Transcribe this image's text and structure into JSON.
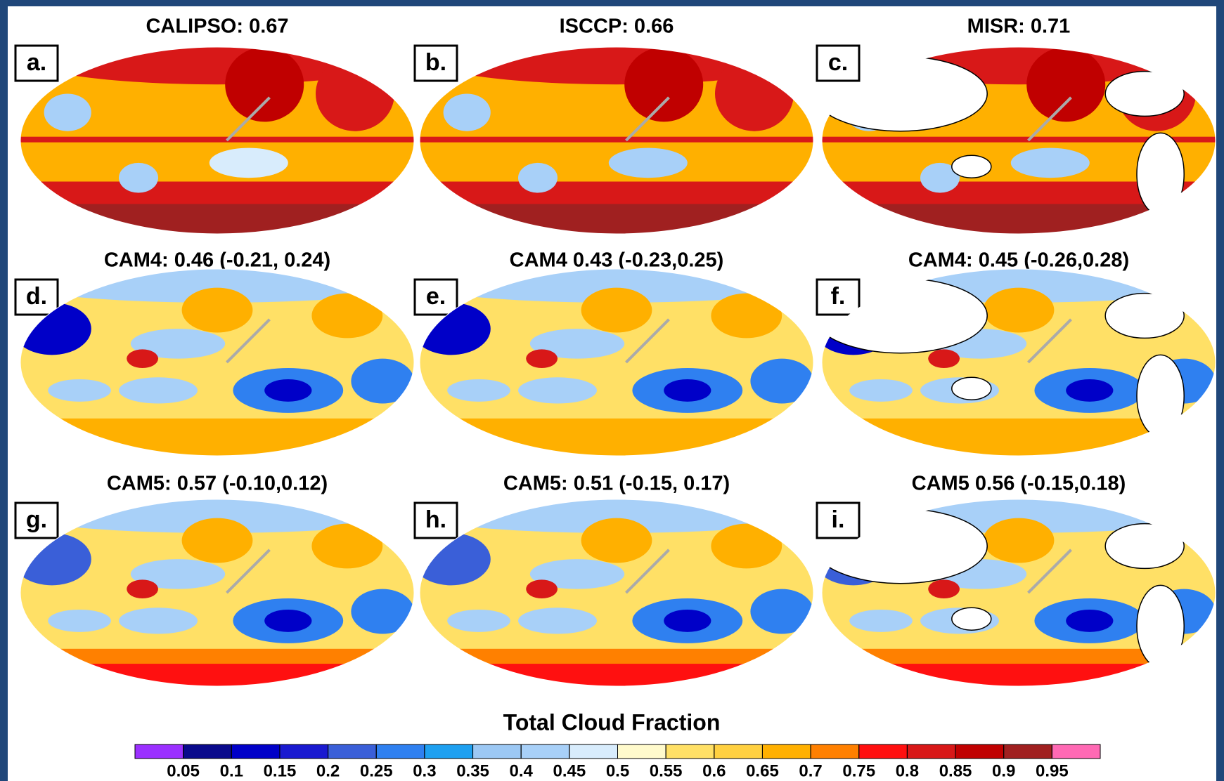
{
  "panels": [
    {
      "letter": "a.",
      "title": "CALIPSO: 0.67"
    },
    {
      "letter": "b.",
      "title": "ISCCP: 0.66"
    },
    {
      "letter": "c.",
      "title": "MISR: 0.71"
    },
    {
      "letter": "d.",
      "title": "CAM4: 0.46 (-0.21, 0.24)"
    },
    {
      "letter": "e.",
      "title": "CAM4 0.43 (-0.23,0.25)"
    },
    {
      "letter": "f.",
      "title": "CAM4: 0.45 (-0.26,0.28)"
    },
    {
      "letter": "g.",
      "title": "CAM5: 0.57 (-0.10,0.12)"
    },
    {
      "letter": "h.",
      "title": "CAM5: 0.51 (-0.15, 0.17)"
    },
    {
      "letter": "i.",
      "title": "CAM5 0.56 (-0.15,0.18)"
    }
  ],
  "colorbar": {
    "title": "Total Cloud Fraction",
    "ticks": [
      0.05,
      0.1,
      0.15,
      0.2,
      0.25,
      0.3,
      0.35,
      0.4,
      0.45,
      0.5,
      0.55,
      0.6,
      0.65,
      0.7,
      0.75,
      0.8,
      0.85,
      0.9,
      0.95
    ],
    "colors": [
      "#9b30ff",
      "#0a0a8c",
      "#0000c8",
      "#1a1ad0",
      "#3a5fd8",
      "#2f80f0",
      "#1ea0f0",
      "#9cc8f4",
      "#a8d0f8",
      "#d8ecfc",
      "#fffacc",
      "#ffe066",
      "#ffd040",
      "#ffb000",
      "#ff8000",
      "#ff1010",
      "#d81818",
      "#c00000",
      "#a02020",
      "#ff69b4"
    ]
  }
}
